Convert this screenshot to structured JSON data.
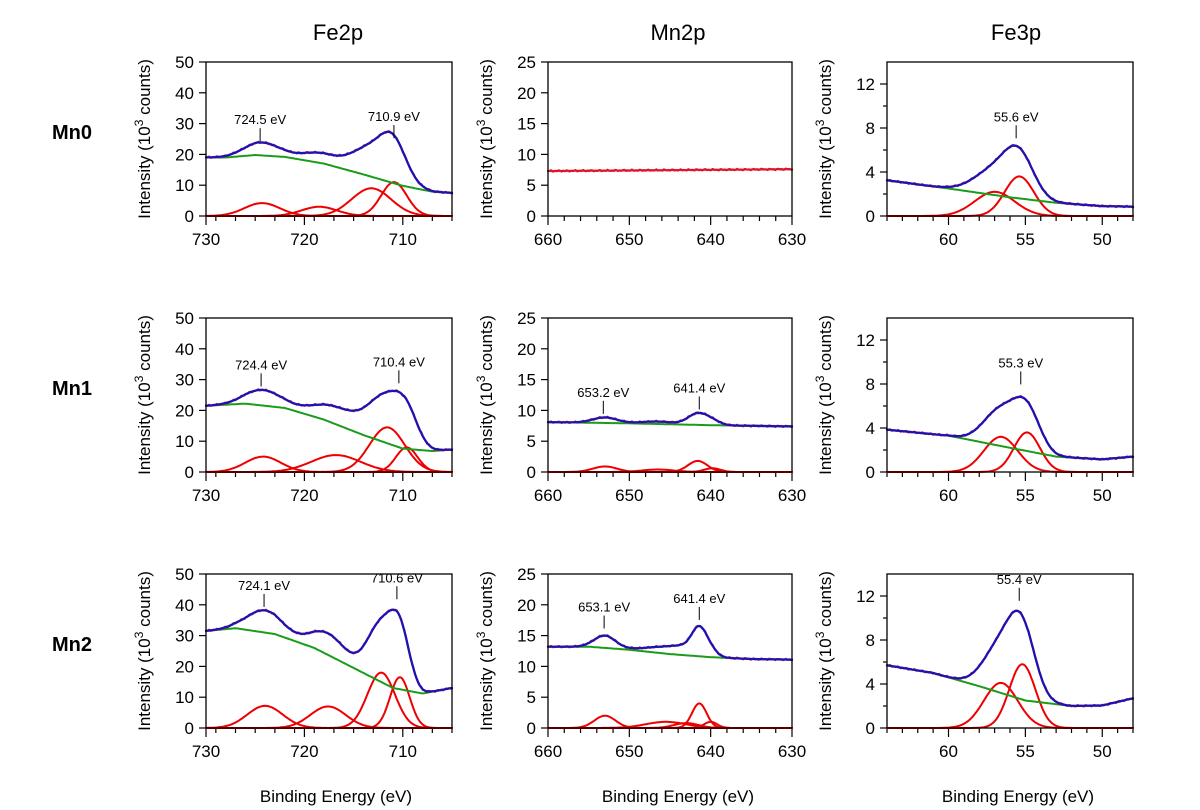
{
  "figure": {
    "column_titles": [
      "Fe2p",
      "Mn2p",
      "Fe3p"
    ],
    "row_labels": [
      "Mn0",
      "Mn1",
      "Mn2"
    ],
    "ylabel_main": "Intensity (10",
    "ylabel_sup": "3",
    "ylabel_tail": " counts)",
    "xlabel": "Binding Energy (eV)",
    "peak_unit": "eV"
  },
  "colors": {
    "measured": "#e8102c",
    "fit_envelope": "#1515b8",
    "background": "#1a9c1a",
    "components": "#ee0000"
  },
  "chart_data": [
    {
      "type": "line",
      "panel": "Fe2p-Mn0",
      "xlim": [
        730,
        705
      ],
      "ylim": [
        0,
        50
      ],
      "xticks": [
        730,
        720,
        710
      ],
      "yticks": [
        0,
        10,
        20,
        30,
        40,
        50
      ],
      "annotations": [
        {
          "x": 724.5,
          "y": 23,
          "label": "724.5 eV"
        },
        {
          "x": 710.9,
          "y": 24,
          "label": "710.9 eV"
        }
      ],
      "background": [
        [
          728,
          19
        ],
        [
          725,
          19.8
        ],
        [
          722,
          19.2
        ],
        [
          718,
          17
        ],
        [
          714,
          13.5
        ],
        [
          710,
          9.8
        ],
        [
          707,
          7.9
        ],
        [
          705,
          7.5
        ]
      ],
      "components": [
        {
          "center": 724.3,
          "height": 4.2,
          "width": 1.8
        },
        {
          "center": 718.5,
          "height": 3.0,
          "width": 1.8
        },
        {
          "center": 713.2,
          "height": 9.0,
          "width": 2.0
        },
        {
          "center": 710.9,
          "height": 11.0,
          "width": 1.3
        }
      ]
    },
    {
      "type": "line",
      "panel": "Mn2p-Mn0",
      "xlim": [
        660,
        630
      ],
      "ylim": [
        0,
        25
      ],
      "xticks": [
        660,
        650,
        640,
        630
      ],
      "yticks": [
        0,
        5,
        10,
        15,
        20,
        25
      ],
      "annotations": [],
      "background": [
        [
          660,
          7.3
        ],
        [
          630,
          7.6
        ]
      ],
      "components": []
    },
    {
      "type": "line",
      "panel": "Fe3p-Mn0",
      "xlim": [
        64,
        48
      ],
      "ylim": [
        0,
        14
      ],
      "xticks": [
        60,
        55,
        50
      ],
      "yticks": [
        0,
        4,
        8,
        12
      ],
      "annotations": [
        {
          "x": 55.6,
          "y": 6.7,
          "label": "55.6 eV"
        }
      ],
      "background": [
        [
          64,
          3.25
        ],
        [
          60,
          2.5
        ],
        [
          56,
          1.7
        ],
        [
          53,
          1.2
        ],
        [
          50,
          0.9
        ],
        [
          48,
          0.85
        ]
      ],
      "components": [
        {
          "center": 57.0,
          "height": 2.2,
          "width": 1.3
        },
        {
          "center": 55.4,
          "height": 3.6,
          "width": 0.95
        }
      ]
    },
    {
      "type": "line",
      "panel": "Fe2p-Mn1",
      "xlim": [
        730,
        705
      ],
      "ylim": [
        0,
        50
      ],
      "xticks": [
        730,
        720,
        710
      ],
      "yticks": [
        0,
        10,
        20,
        30,
        40,
        50
      ],
      "annotations": [
        {
          "x": 724.4,
          "y": 26.5,
          "label": "724.4 eV"
        },
        {
          "x": 710.4,
          "y": 27.5,
          "label": "710.4 eV"
        }
      ],
      "background": [
        [
          730,
          21.5
        ],
        [
          726,
          22.2
        ],
        [
          722,
          20.8
        ],
        [
          718,
          17
        ],
        [
          714,
          12
        ],
        [
          710,
          7.6
        ],
        [
          707,
          6.8
        ],
        [
          705,
          7.3
        ]
      ],
      "components": [
        {
          "center": 724.2,
          "height": 5.0,
          "width": 1.8
        },
        {
          "center": 716.8,
          "height": 5.5,
          "width": 2.5
        },
        {
          "center": 711.6,
          "height": 14.5,
          "width": 1.8
        },
        {
          "center": 709.6,
          "height": 8.0,
          "width": 1.1
        }
      ]
    },
    {
      "type": "line",
      "panel": "Mn2p-Mn1",
      "xlim": [
        660,
        630
      ],
      "ylim": [
        0,
        25
      ],
      "xticks": [
        660,
        650,
        640,
        630
      ],
      "yticks": [
        0,
        5,
        10,
        15,
        20,
        25
      ],
      "annotations": [
        {
          "x": 653.2,
          "y": 8.8,
          "label": "653.2 eV"
        },
        {
          "x": 641.4,
          "y": 9.5,
          "label": "641.4 eV"
        }
      ],
      "background": [
        [
          660,
          8.1
        ],
        [
          650,
          7.9
        ],
        [
          640,
          7.6
        ],
        [
          630,
          7.4
        ]
      ],
      "components": [
        {
          "center": 653.0,
          "height": 0.9,
          "width": 1.5
        },
        {
          "center": 646.5,
          "height": 0.4,
          "width": 2.0
        },
        {
          "center": 641.6,
          "height": 1.8,
          "width": 1.2
        },
        {
          "center": 639.8,
          "height": 0.6,
          "width": 1.0
        }
      ]
    },
    {
      "type": "line",
      "panel": "Fe3p-Mn1",
      "xlim": [
        64,
        48
      ],
      "ylim": [
        0,
        14
      ],
      "xticks": [
        60,
        55,
        50
      ],
      "yticks": [
        0,
        4,
        8,
        12
      ],
      "annotations": [
        {
          "x": 55.3,
          "y": 7.6,
          "label": "55.3 eV"
        }
      ],
      "background": [
        [
          64,
          3.85
        ],
        [
          60,
          3.3
        ],
        [
          56,
          2.2
        ],
        [
          53,
          1.4
        ],
        [
          50,
          1.15
        ],
        [
          48,
          1.4
        ]
      ],
      "components": [
        {
          "center": 56.6,
          "height": 3.2,
          "width": 1.1
        },
        {
          "center": 54.9,
          "height": 3.6,
          "width": 0.85
        }
      ]
    },
    {
      "type": "line",
      "panel": "Fe2p-Mn2",
      "xlim": [
        730,
        705
      ],
      "ylim": [
        0,
        50
      ],
      "xticks": [
        730,
        720,
        710
      ],
      "yticks": [
        0,
        10,
        20,
        30,
        40,
        50
      ],
      "annotations": [
        {
          "x": 724.1,
          "y": 38,
          "label": "724.1 eV"
        },
        {
          "x": 710.6,
          "y": 40.5,
          "label": "710.6 eV"
        }
      ],
      "background": [
        [
          730,
          31.5
        ],
        [
          727,
          32.4
        ],
        [
          723,
          30.5
        ],
        [
          719,
          26
        ],
        [
          715,
          19.5
        ],
        [
          711,
          13
        ],
        [
          708,
          11.2
        ],
        [
          705,
          13
        ]
      ],
      "components": [
        {
          "center": 724.0,
          "height": 7.2,
          "width": 1.8
        },
        {
          "center": 717.6,
          "height": 7.0,
          "width": 1.8
        },
        {
          "center": 712.2,
          "height": 18.0,
          "width": 1.4
        },
        {
          "center": 710.3,
          "height": 16.5,
          "width": 1.0
        }
      ]
    },
    {
      "type": "line",
      "panel": "Mn2p-Mn2",
      "xlim": [
        660,
        630
      ],
      "ylim": [
        0,
        25
      ],
      "xticks": [
        660,
        650,
        640,
        630
      ],
      "yticks": [
        0,
        5,
        10,
        15,
        20,
        25
      ],
      "annotations": [
        {
          "x": 653.1,
          "y": 15.5,
          "label": "653.1 eV"
        },
        {
          "x": 641.4,
          "y": 16.9,
          "label": "641.4 eV"
        }
      ],
      "background": [
        [
          660,
          13.2
        ],
        [
          655,
          13.2
        ],
        [
          650,
          12.7
        ],
        [
          645,
          12.0
        ],
        [
          640,
          11.5
        ],
        [
          635,
          11.2
        ],
        [
          630,
          11.1
        ]
      ],
      "components": [
        {
          "center": 653.0,
          "height": 2.0,
          "width": 1.3
        },
        {
          "center": 645.5,
          "height": 1.0,
          "width": 2.5
        },
        {
          "center": 643.0,
          "height": 0.8,
          "width": 1.5
        },
        {
          "center": 641.4,
          "height": 4.0,
          "width": 0.9
        },
        {
          "center": 640.0,
          "height": 1.0,
          "width": 0.8
        }
      ]
    },
    {
      "type": "line",
      "panel": "Fe3p-Mn2",
      "xlim": [
        64,
        48
      ],
      "ylim": [
        0,
        14
      ],
      "xticks": [
        60,
        55,
        50
      ],
      "yticks": [
        0,
        4,
        8,
        12
      ],
      "annotations": [
        {
          "x": 55.4,
          "y": 11.2,
          "label": "55.4 eV"
        }
      ],
      "background": [
        [
          64,
          5.7
        ],
        [
          61,
          5.0
        ],
        [
          58,
          3.8
        ],
        [
          55,
          2.5
        ],
        [
          52,
          2.0
        ],
        [
          50,
          2.05
        ],
        [
          48,
          2.7
        ]
      ],
      "components": [
        {
          "center": 56.6,
          "height": 4.1,
          "width": 1.1
        },
        {
          "center": 55.2,
          "height": 5.8,
          "width": 0.85
        }
      ]
    }
  ]
}
